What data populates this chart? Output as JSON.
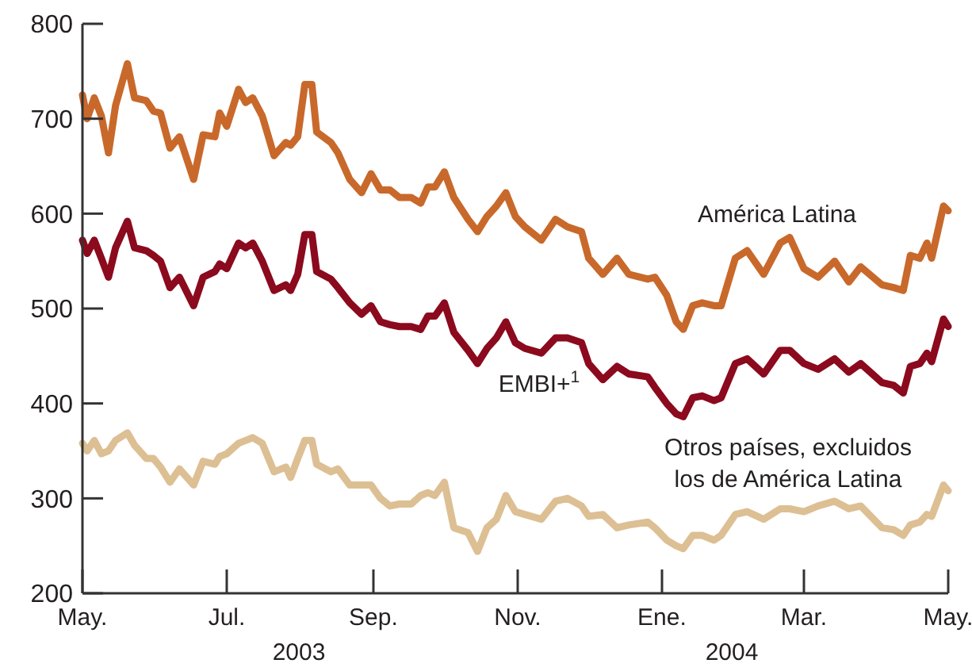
{
  "chart_data": {
    "type": "line",
    "x": [
      "2003-05-01",
      "2003-05-03",
      "2003-05-06",
      "2003-05-09",
      "2003-05-12",
      "2003-05-15",
      "2003-05-20",
      "2003-05-23",
      "2003-05-28",
      "2003-05-31",
      "2003-06-03",
      "2003-06-07",
      "2003-06-11",
      "2003-06-17",
      "2003-06-21",
      "2003-06-26",
      "2003-06-28",
      "2003-07-01",
      "2003-07-06",
      "2003-07-09",
      "2003-07-12",
      "2003-07-16",
      "2003-07-21",
      "2003-07-26",
      "2003-07-28",
      "2003-07-31",
      "2003-08-03",
      "2003-08-06",
      "2003-08-08",
      "2003-08-14",
      "2003-08-17",
      "2003-08-22",
      "2003-08-27",
      "2003-08-31",
      "2003-09-04",
      "2003-09-08",
      "2003-09-12",
      "2003-09-17",
      "2003-09-21",
      "2003-09-24",
      "2003-09-27",
      "2003-10-01",
      "2003-10-05",
      "2003-10-11",
      "2003-10-15",
      "2003-10-19",
      "2003-10-23",
      "2003-10-27",
      "2003-10-31",
      "2003-11-04",
      "2003-11-11",
      "2003-11-17",
      "2003-11-22",
      "2003-11-28",
      "2003-12-01",
      "2003-12-07",
      "2003-12-13",
      "2003-12-18",
      "2003-12-26",
      "2003-12-29",
      "2004-01-03",
      "2004-01-07",
      "2004-01-10",
      "2004-01-14",
      "2004-01-18",
      "2004-01-23",
      "2004-01-26",
      "2004-02-01",
      "2004-02-06",
      "2004-02-13",
      "2004-02-20",
      "2004-02-24",
      "2004-03-01",
      "2004-03-07",
      "2004-03-14",
      "2004-03-20",
      "2004-03-25",
      "2004-04-03",
      "2004-04-08",
      "2004-04-12",
      "2004-04-15",
      "2004-04-19",
      "2004-04-22",
      "2004-04-24",
      "2004-04-29",
      "2004-05-01"
    ],
    "series": [
      {
        "name": "América Latina",
        "color": "#c8692b",
        "values": [
          725,
          700,
          722,
          703,
          664,
          714,
          758,
          722,
          719,
          708,
          706,
          669,
          681,
          636,
          683,
          681,
          706,
          692,
          731,
          717,
          722,
          703,
          661,
          675,
          672,
          681,
          736,
          736,
          686,
          675,
          664,
          636,
          622,
          642,
          625,
          625,
          617,
          617,
          611,
          628,
          628,
          644,
          617,
          594,
          581,
          597,
          608,
          622,
          597,
          586,
          572,
          594,
          586,
          581,
          553,
          536,
          553,
          536,
          531,
          533,
          514,
          486,
          478,
          503,
          506,
          503,
          503,
          553,
          561,
          536,
          569,
          575,
          542,
          533,
          550,
          528,
          544,
          525,
          522,
          519,
          556,
          553,
          569,
          553,
          608,
          603
        ]
      },
      {
        "name": "EMBI+$^{1}$",
        "color": "#8b0a1e",
        "values": [
          572,
          558,
          572,
          553,
          533,
          564,
          592,
          564,
          561,
          556,
          550,
          522,
          533,
          503,
          533,
          539,
          547,
          542,
          569,
          564,
          569,
          550,
          519,
          525,
          519,
          536,
          578,
          578,
          539,
          531,
          522,
          506,
          494,
          503,
          486,
          483,
          481,
          481,
          478,
          492,
          492,
          506,
          475,
          456,
          442,
          458,
          469,
          486,
          464,
          458,
          453,
          469,
          469,
          464,
          442,
          425,
          439,
          431,
          428,
          417,
          400,
          389,
          386,
          406,
          408,
          403,
          406,
          442,
          447,
          431,
          456,
          456,
          442,
          436,
          447,
          433,
          442,
          422,
          419,
          411,
          439,
          442,
          453,
          444,
          489,
          481
        ]
      },
      {
        "name": "Otros países, excluidos\nlos de América Latina",
        "color": "#ddbf94",
        "values": [
          358,
          350,
          361,
          347,
          350,
          361,
          369,
          356,
          342,
          342,
          333,
          317,
          331,
          314,
          339,
          336,
          344,
          347,
          358,
          361,
          364,
          358,
          328,
          333,
          322,
          342,
          361,
          361,
          336,
          328,
          331,
          314,
          314,
          314,
          300,
          292,
          294,
          294,
          303,
          306,
          303,
          317,
          269,
          264,
          244,
          269,
          278,
          303,
          286,
          283,
          278,
          297,
          300,
          292,
          281,
          283,
          269,
          272,
          275,
          269,
          256,
          250,
          247,
          261,
          261,
          256,
          261,
          283,
          286,
          278,
          289,
          289,
          286,
          292,
          297,
          289,
          292,
          269,
          267,
          261,
          272,
          275,
          283,
          281,
          314,
          308
        ]
      }
    ],
    "xlim": [
      "2003-05-01",
      "2004-05-01"
    ],
    "xticks": [
      {
        "value": "2003-05-01",
        "label": "May."
      },
      {
        "value": "2003-07-01",
        "label": "Jul."
      },
      {
        "value": "2003-09-01",
        "label": "Sep."
      },
      {
        "value": "2003-11-01",
        "label": "Nov."
      },
      {
        "value": "2004-01-01",
        "label": "Ene."
      },
      {
        "value": "2004-03-01",
        "label": "Mar."
      },
      {
        "value": "2004-05-01",
        "label": "May."
      }
    ],
    "ylim": [
      200,
      800
    ],
    "yticks": [
      200,
      300,
      400,
      500,
      600,
      700,
      800
    ],
    "annotations": [
      "2003",
      "2004"
    ],
    "legend": false,
    "grid": false,
    "line_style": "solid",
    "marker": "none"
  }
}
